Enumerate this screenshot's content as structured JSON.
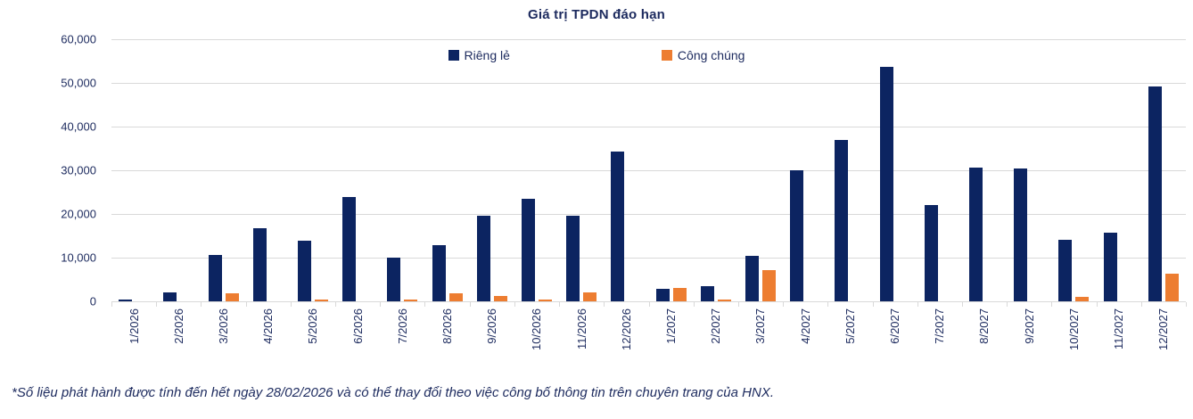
{
  "chart_data": {
    "type": "bar",
    "title": "Giá trị TPDN đáo hạn",
    "categories": [
      "1/2026",
      "2/2026",
      "3/2026",
      "4/2026",
      "5/2026",
      "6/2026",
      "7/2026",
      "8/2026",
      "9/2026",
      "10/2026",
      "11/2026",
      "12/2026",
      "1/2027",
      "2/2027",
      "3/2027",
      "4/2027",
      "5/2027",
      "6/2027",
      "7/2027",
      "8/2027",
      "9/2027",
      "10/2027",
      "11/2027",
      "12/2027"
    ],
    "series": [
      {
        "name": "Riêng lẻ",
        "color": "#0c2461",
        "values": [
          500,
          2100,
          10700,
          16700,
          13900,
          23800,
          10000,
          12800,
          19600,
          23400,
          19500,
          34200,
          2900,
          3500,
          10400,
          30000,
          37000,
          53600,
          22000,
          30600,
          30400,
          14100,
          15800,
          49100
        ]
      },
      {
        "name": "Công chúng",
        "color": "#ed7d31",
        "values": [
          0,
          0,
          1800,
          0,
          300,
          0,
          250,
          1900,
          1200,
          500,
          2000,
          0,
          3000,
          250,
          7200,
          0,
          0,
          0,
          0,
          0,
          0,
          1000,
          0,
          6300
        ]
      }
    ],
    "ylim": [
      0,
      60000
    ],
    "ytick_step": 10000,
    "ytick_labels": [
      "0",
      "10,000",
      "20,000",
      "30,000",
      "40,000",
      "50,000",
      "60,000"
    ],
    "grid": true,
    "legend_position": "top-center",
    "colors": {
      "grid": "#d9d9d9",
      "text": "#1c2a5e"
    }
  },
  "footnote": "*Số liệu phát hành được tính đến hết ngày 28/02/2026 và có thể thay đổi theo việc công bố thông tin trên chuyên trang của HNX."
}
